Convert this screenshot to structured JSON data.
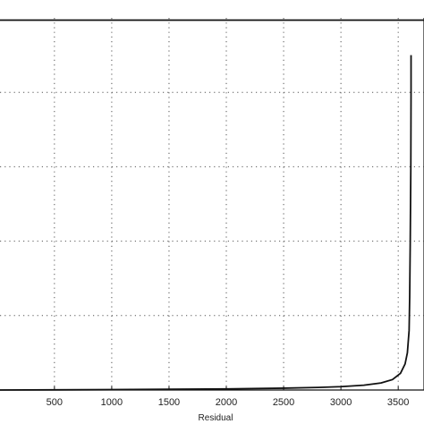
{
  "chart_data": {
    "type": "line",
    "title": "",
    "xlabel": "Residual",
    "ylabel": "",
    "xlim": [
      25,
      3725
    ],
    "ylim": [
      0,
      1
    ],
    "xticks": [
      500,
      1000,
      1500,
      2000,
      2500,
      3000,
      3500
    ],
    "xtick_labels": [
      "500",
      "1000",
      "1500",
      "2000",
      "2500",
      "3000",
      "3500"
    ],
    "yticks": [
      0,
      0.2,
      0.4,
      0.6,
      0.8,
      1.0
    ],
    "grid": true,
    "series": [
      {
        "name": "",
        "color": "#111111",
        "x": [
          25,
          500,
          1000,
          1500,
          2000,
          2500,
          2800,
          3000,
          3200,
          3350,
          3450,
          3520,
          3560,
          3580,
          3595,
          3600,
          3605,
          3610,
          3612,
          3612
        ],
        "y": [
          0.0,
          0.0005,
          0.001,
          0.002,
          0.003,
          0.005,
          0.007,
          0.009,
          0.013,
          0.019,
          0.028,
          0.045,
          0.07,
          0.1,
          0.16,
          0.25,
          0.4,
          0.6,
          0.8,
          0.9
        ]
      },
      {
        "name": "",
        "color": "#111111",
        "x": [
          25,
          3725
        ],
        "y": [
          0.994,
          0.994
        ]
      }
    ]
  }
}
